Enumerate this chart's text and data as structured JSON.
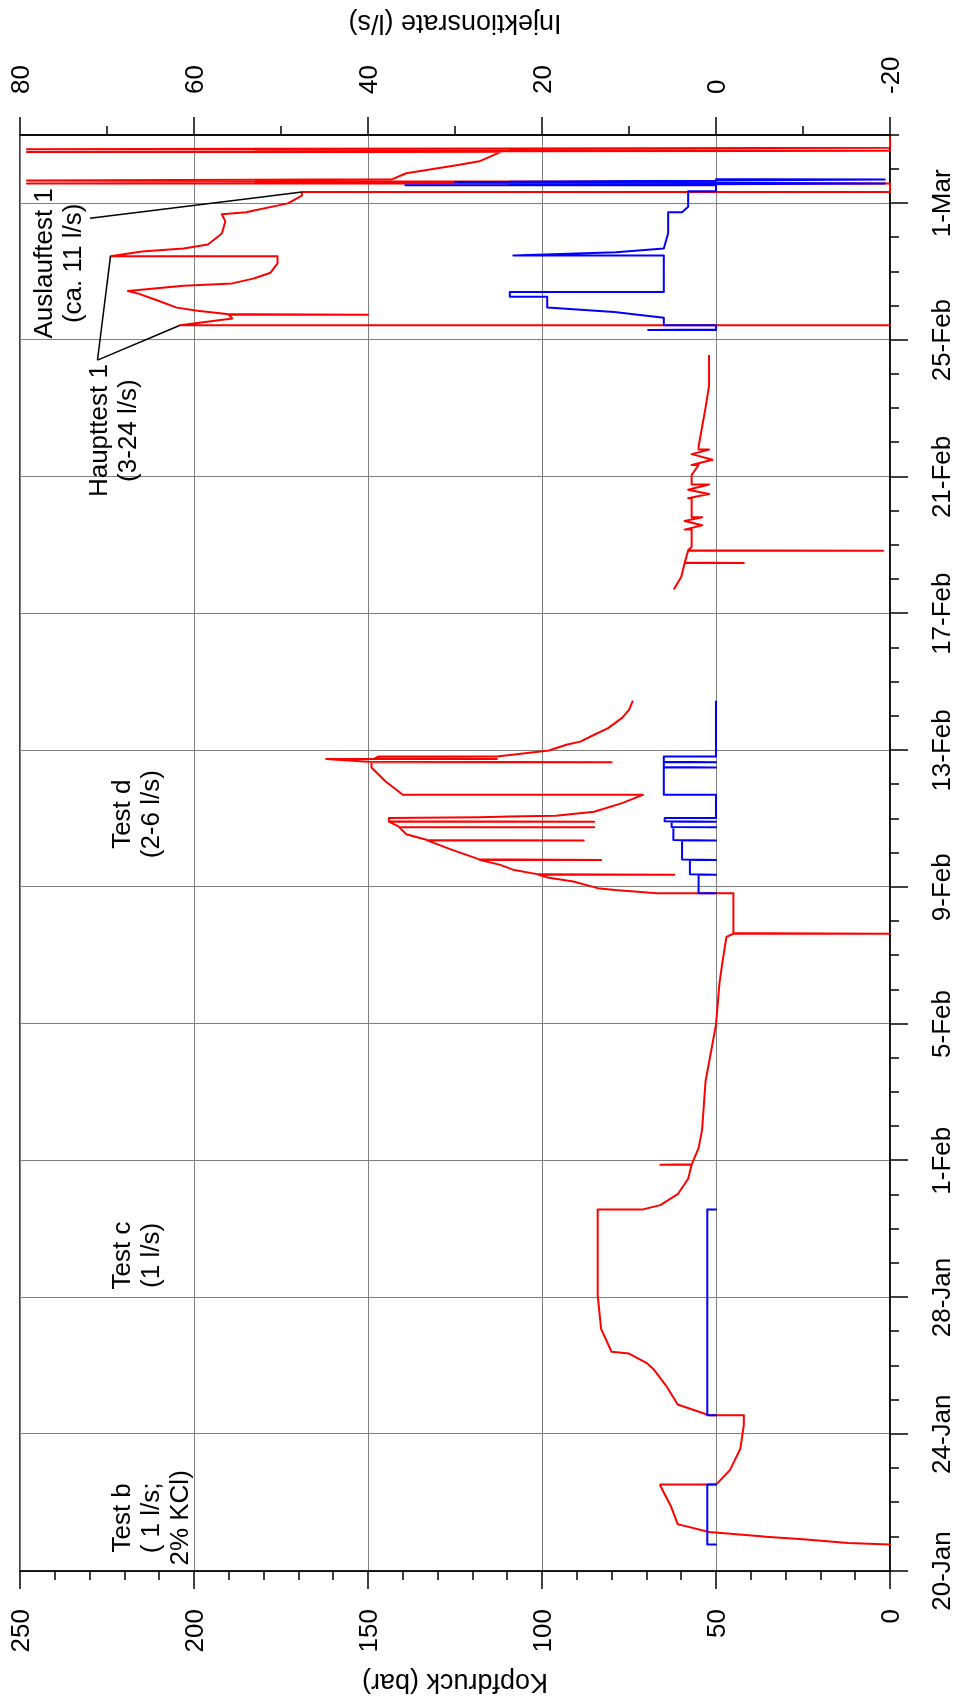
{
  "chart_data": {
    "type": "line",
    "orientation": "horizontal",
    "xlabel": "Kopfdruck (bar)",
    "x2label": "Injektionsrate (l/s)",
    "xlim": [
      250,
      0
    ],
    "xticks": [
      250,
      {
        "value": 240,
        "label": null
      },
      {
        "value": 230,
        "label": null
      },
      {
        "value": 220,
        "label": null
      },
      {
        "value": 210,
        "label": null
      },
      200,
      {
        "value": 190,
        "label": null
      },
      {
        "value": 180,
        "label": null
      },
      {
        "value": 170,
        "label": null
      },
      {
        "value": 160,
        "label": null
      },
      150,
      {
        "value": 140,
        "label": null
      },
      {
        "value": 130,
        "label": null
      },
      {
        "value": 120,
        "label": null
      },
      {
        "value": 110,
        "label": null
      },
      100,
      {
        "value": 90,
        "label": null
      },
      {
        "value": 80,
        "label": null
      },
      {
        "value": 70,
        "label": null
      },
      {
        "value": 60,
        "label": null
      },
      50,
      {
        "value": 40,
        "label": null
      },
      {
        "value": 30,
        "label": null
      },
      {
        "value": 20,
        "label": null
      },
      {
        "value": 10,
        "label": null
      },
      0
    ],
    "x2lim": [
      80,
      -20
    ],
    "x2ticks": [
      80,
      {
        "value": 70,
        "label": null
      },
      60,
      {
        "value": 50,
        "label": null
      },
      40,
      {
        "value": 30,
        "label": null
      },
      20,
      {
        "value": 10,
        "label": null
      },
      0,
      {
        "value": -10,
        "label": null
      },
      -20
    ],
    "ylim": [
      "--01-20",
      "--03-03"
    ],
    "yticks": [
      {
        "value": "--01-20",
        "label": "20-Jan"
      },
      {
        "value": "--01-21",
        "label": null
      },
      {
        "value": "--01-22",
        "label": null
      },
      {
        "value": "--01-23",
        "label": null
      },
      {
        "value": "--01-24",
        "label": "24-Jan"
      },
      {
        "value": "--01-25",
        "label": null
      },
      {
        "value": "--01-26",
        "label": null
      },
      {
        "value": "--01-27",
        "label": null
      },
      {
        "value": "--01-28",
        "label": "28-Jan"
      },
      {
        "value": "--01-29",
        "label": null
      },
      {
        "value": "--01-30",
        "label": null
      },
      {
        "value": "--01-31",
        "label": null
      },
      {
        "value": "--02-01",
        "label": "1-Feb"
      },
      {
        "value": "--02-02",
        "label": null
      },
      {
        "value": "--02-03",
        "label": null
      },
      {
        "value": "--02-04",
        "label": null
      },
      {
        "value": "--02-05",
        "label": "5-Feb"
      },
      {
        "value": "--02-06",
        "label": null
      },
      {
        "value": "--02-07",
        "label": null
      },
      {
        "value": "--02-08",
        "label": null
      },
      {
        "value": "--02-09",
        "label": "9-Feb"
      },
      {
        "value": "--02-10",
        "label": null
      },
      {
        "value": "--02-11",
        "label": null
      },
      {
        "value": "--02-12",
        "label": null
      },
      {
        "value": "--02-13",
        "label": "13-Feb"
      },
      {
        "value": "--02-14",
        "label": null
      },
      {
        "value": "--02-15",
        "label": null
      },
      {
        "value": "--02-16",
        "label": null
      },
      {
        "value": "--02-17",
        "label": "17-Feb"
      },
      {
        "value": "--02-18",
        "label": null
      },
      {
        "value": "--02-19",
        "label": null
      },
      {
        "value": "--02-20",
        "label": null
      },
      {
        "value": "--02-21",
        "label": "21-Feb"
      },
      {
        "value": "--02-22",
        "label": null
      },
      {
        "value": "--02-23",
        "label": null
      },
      {
        "value": "--02-24",
        "label": null
      },
      {
        "value": "--02-25",
        "label": "25-Feb"
      },
      {
        "value": "--02-26",
        "label": null
      },
      {
        "value": "--02-27",
        "label": null
      },
      {
        "value": "--02-28",
        "label": null
      },
      {
        "value": "--03-01",
        "label": "1-Mar"
      },
      {
        "value": "--03-02",
        "label": null
      },
      {
        "value": "--03-03",
        "label": null
      }
    ],
    "grid": true,
    "marker": "none",
    "series": [
      {
        "color": "#ff0000",
        "x": [
          "--01-20T18:40",
          "--01-20T19:40",
          "--01-20T22:20",
          "--01-21T00:30",
          "--01-21T03:20",
          "--01-21T07:40",
          "--01-21T08:50",
          "--01-21T21:40",
          "--01-22T11:50",
          "--01-22T12:40",
          "--01-22T12:40",
          "--01-22T22:50",
          "--01-23T13:50",
          "--01-24T06:30",
          "--01-24T13:20",
          "--01-24T13:20",
          "--01-24T20:50",
          "--01-25T08:50",
          "--01-25T21:50",
          "--01-26T02:10",
          "--01-26T08:40",
          "--01-26T09:50",
          "--01-26T15:10",
          "--01-27T01:50",
          "--01-28T01:30",
          "--01-30T13:50",
          "--01-30T13:50",
          "--01-30T16:50",
          "--01-31T00:30",
          "--01-31T11:20",
          "--01-31T21:10",
          "--01-31T21:10",
          "--01-31T21:30",
          "--02-01T08:50",
          "--02-01T21:40",
          "--02-03T07:50",
          "--02-04T23:30",
          "--02-06T04:50",
          "--02-06T21:40",
          "--02-07T13:10",
          "--02-07T15:20",
          "--02-07T15:20",
          "--02-07T15:40",
          "--02-08T00:00",
          "--02-08T19:40",
          "--02-08T19:40",
          "--02-08T22:00",
          "--02-08T23:20",
          "--02-09T04:00",
          "--02-09T06:40",
          "--02-09T08:40",
          "--02-09T08:40",
          "--02-09T09:00",
          "--02-09T12:00",
          "--02-09T15:40",
          "--02-09T19:10",
          "--02-09T19:10",
          "--02-09T19:30",
          "--02-10T02:20",
          "--02-10T08:50",
          "--02-10T08:50",
          "--02-10T09:10",
          "--02-10T13:10",
          "--02-10T18:00",
          "--02-10T18:00",
          "--02-10T18:20",
          "--02-10T22:00",
          "--02-10T22:00",
          "--02-10T22:20",
          "--02-11T00:30",
          "--02-11T01:10",
          "--02-11T02:10",
          "--02-11T05:00",
          "--02-11T11:00",
          "--02-11T16:50",
          "--02-11T16:50",
          "--02-12T02:20",
          "--02-12T12:00",
          "--02-12T15:40",
          "--02-12T15:40",
          "--02-12T16:00",
          "--02-12T18:00",
          "--02-12T18:00",
          "--02-12T18:20",
          "--02-12T19:40",
          "--02-12T19:40",
          "--02-13T00:00",
          "--02-13T04:00",
          "--02-13T06:10",
          "--02-13T11:00",
          "--02-13T15:40",
          "--02-13T22:50",
          "--02-14T04:30",
          "--02-14T10:20",
          "--02-16T00:00",
          "--02-17T17:30",
          "--02-18T01:40",
          "--02-18T11:30",
          "--02-18T11:30",
          "--02-18T11:50",
          "--02-18T20:10",
          "--02-18T20:10",
          "--02-18T20:30",
          "--02-18T23:00",
          "--02-19T11:00",
          "--02-19T11:00",
          "--02-19T14:00",
          "--02-19T17:00",
          "--02-19T19:40",
          "--02-19T19:40",
          "--02-20T09:00",
          "--02-20T09:00",
          "--02-20T12:00",
          "--02-20T15:00",
          "--02-20T18:40",
          "--02-20T18:40",
          "--02-21T01:20",
          "--02-21T08:20",
          "--02-21T08:20",
          "--02-21T12:00",
          "--02-21T16:00",
          "--02-21T19:10",
          "--02-21T19:10",
          "--02-21T21:20",
          "--02-22T11:00",
          "--02-23T00:40",
          "--02-23T15:50",
          "--02-24T13:00",
          "--02-25T00:00",
          "--02-25T10:30",
          "--02-25T10:30",
          "--02-25T15:10",
          "--02-25T17:50",
          "--02-25T17:50",
          "--02-25T18:10",
          "--02-25T20:40",
          "--02-25T22:50",
          "--02-26T04:20",
          "--02-26T08:40",
          "--02-26T10:30",
          "--02-26T14:10",
          "--02-26T15:50",
          "--02-26T19:10",
          "--02-26T23:20",
          "--02-27T05:50",
          "--02-27T10:50",
          "--02-27T10:50",
          "--02-27T14:10",
          "--02-27T16:20",
          "--02-27T19:10",
          "--02-28T02:50",
          "--02-28T11:20",
          "--02-28T16:20",
          "--02-28T17:50",
          "--03-01T00:00",
          "--03-01T05:30",
          "--03-01T08:00",
          "--03-01T08:00",
          "--03-01T14:00",
          "--03-01T14:00",
          "--03-01T15:00",
          "--03-01T16:00",
          "--03-01T17:00",
          "--03-01T21:10",
          "--03-02T02:40",
          "--03-02T05:30",
          "--03-02T12:00",
          "--03-02T12:00",
          "--03-02T13:00",
          "--03-02T14:00",
          "--03-02T15:00",
          "--03-02T22:30"
        ],
        "values": [
          0,
          12,
          25,
          38,
          52,
          59,
          61,
          63,
          66,
          66,
          50,
          46,
          43,
          42,
          42,
          52,
          61,
          64,
          68,
          70,
          75,
          80,
          81,
          83,
          84,
          84,
          71,
          66,
          61,
          58,
          57,
          66,
          57,
          55,
          54,
          53,
          50,
          49,
          48,
          47,
          45,
          0,
          45,
          45,
          45,
          67,
          79,
          84,
          91,
          98,
          101,
          62,
          101,
          108,
          112,
          118,
          83,
          118,
          126,
          133,
          88,
          133,
          139,
          141,
          85,
          141,
          144,
          85,
          144,
          144,
          118,
          96,
          85,
          77,
          71,
          140,
          145,
          149,
          149,
          80,
          150,
          162,
          113,
          148,
          147,
          113,
          98,
          93,
          89,
          85,
          81,
          77,
          75,
          74,
          null,
          62,
          60,
          59,
          42,
          59,
          58,
          2,
          58,
          57,
          57,
          59,
          54,
          59,
          54,
          57,
          57,
          58,
          52,
          58,
          52,
          57,
          57,
          55,
          57,
          51,
          57,
          52,
          55,
          55,
          54,
          53,
          52,
          52,
          null,
          0,
          204,
          189,
          190,
          150,
          190,
          199,
          205,
          211,
          216,
          219,
          203,
          189,
          183,
          178,
          176,
          176,
          224,
          215,
          203,
          196,
          192,
          191,
          192,
          185,
          173,
          169,
          169,
          0,
          0,
          248,
          50,
          248,
          143,
          139,
          125,
          118,
          112,
          248,
          0,
          248,
          0,
          0
        ]
      },
      {
        "color": "#0000ff",
        "axis": "x2",
        "x": [
          "--01-20T18:40",
          "--01-20T18:40",
          "--01-22T12:40",
          "--01-22T12:40",
          "--01-23T12:00",
          "--01-24T13:20",
          "--01-24T13:20",
          "--01-30T13:50",
          "--01-30T13:50",
          "--02-04T00:00",
          "--02-08T19:40",
          "--02-08T19:40",
          "--02-09T08:40",
          "--02-09T08:40",
          "--02-09T09:00",
          "--02-09T19:10",
          "--02-09T19:10",
          "--02-09T19:30",
          "--02-10T08:50",
          "--02-10T08:50",
          "--02-10T09:10",
          "--02-10T18:00",
          "--02-10T18:00",
          "--02-10T18:20",
          "--02-10T22:00",
          "--02-10T22:00",
          "--02-10T22:20",
          "--02-11T00:30",
          "--02-11T00:30",
          "--02-11T16:50",
          "--02-11T16:50",
          "--02-12T12:00",
          "--02-12T12:00",
          "--02-12T12:20",
          "--02-12T15:40",
          "--02-12T15:40",
          "--02-12T16:00",
          "--02-12T19:40",
          "--02-12T19:40",
          "--02-14T10:20",
          "--02-20T00:00",
          "--02-25T07:10",
          "--02-25T07:10",
          "--02-25T07:30",
          "--02-25T10:30",
          "--02-25T10:30",
          "--02-25T15:40",
          "--02-25T19:50",
          "--02-25T22:50",
          "--02-26T06:30",
          "--02-26T06:30",
          "--02-26T09:50",
          "--02-26T09:50",
          "--02-27T11:20",
          "--02-27T11:20",
          "--02-27T13:40",
          "--02-27T16:20",
          "--02-28T03:00",
          "--02-28T17:50",
          "--02-28T17:50",
          "--02-28T21:40",
          "--03-01T08:30",
          "--03-01T08:30",
          "--03-01T12:40",
          "--03-01T12:40",
          "--03-01T14:00",
          "--03-01T15:00",
          "--03-01T16:50",
          "--03-01T17:00"
        ],
        "values": [
          0,
          1,
          1,
          0,
          null,
          0,
          1,
          1,
          0,
          null,
          0,
          2,
          2,
          0,
          3,
          3,
          0,
          3.9,
          3.9,
          0,
          4.9,
          4.9,
          0,
          5.1,
          5.1,
          0,
          5.9,
          5.9,
          0,
          0,
          6,
          6,
          0,
          6,
          6,
          0,
          6,
          6,
          0,
          0,
          null,
          0,
          7.8,
          0,
          0,
          6,
          6,
          11.7,
          19.4,
          19.4,
          23.7,
          23.7,
          6,
          6,
          23.3,
          11.5,
          6,
          5.5,
          5.5,
          3.9,
          3.2,
          3.2,
          0,
          0,
          35.7,
          -19.4,
          30,
          -19.4,
          0
        ]
      }
    ],
    "annotations": [
      "Test b\n( 1 l/s;\n2% KCl)",
      "Test c\n(1 l/s)",
      "Test d\n(2-6 l/s)",
      {
        "text": "Haupttest 1\n(3-24 l/s)",
        "x": 204,
        "y": "--02-25T10:30"
      },
      {
        "text": "Auslauftest 1\n(ca. 11 l/s)",
        "x": 169,
        "y": "--03-01T08:00"
      }
    ]
  }
}
